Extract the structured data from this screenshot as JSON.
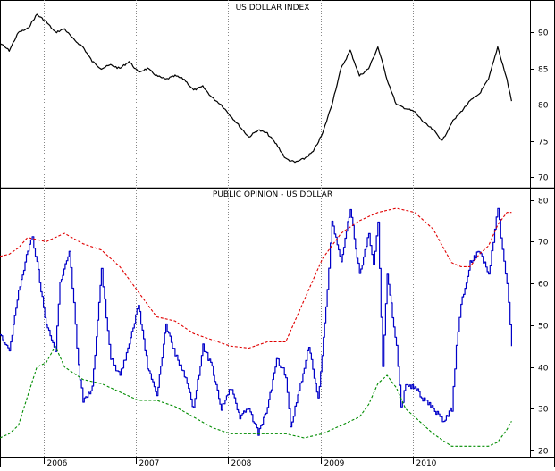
{
  "chart_data": [
    {
      "type": "line",
      "title": "US DOLLAR INDEX",
      "ylim": [
        68.5,
        94.5
      ],
      "y_ticks": [
        70,
        75,
        80,
        85,
        90
      ],
      "x_ticks": [
        "2006",
        "2007",
        "2008",
        "2009",
        "2010"
      ],
      "series": [
        {
          "color": "#000000",
          "style": "solid",
          "x": [
            2005.0,
            2005.1,
            2005.2,
            2005.3,
            2005.4,
            2005.5,
            2005.6,
            2005.7,
            2005.8,
            2005.9,
            2006.0,
            2006.1,
            2006.2,
            2006.3,
            2006.4,
            2006.5,
            2006.6,
            2006.7,
            2006.8,
            2006.9,
            2007.0,
            2007.1,
            2007.2,
            2007.3,
            2007.4,
            2007.5,
            2007.6,
            2007.7,
            2007.8,
            2007.9,
            2008.0,
            2008.1,
            2008.2,
            2008.3,
            2008.4,
            2008.5,
            2008.6,
            2008.7,
            2008.8,
            2008.9,
            2009.0,
            2009.1,
            2009.2,
            2009.3,
            2009.4,
            2009.5,
            2009.6,
            2009.7,
            2009.8,
            2009.9,
            2010.0,
            2010.1,
            2010.2,
            2010.3,
            2010.4,
            2010.5,
            2010.55
          ],
          "values": [
            88.5,
            87.5,
            90.0,
            90.5,
            92.5,
            91.5,
            90.0,
            90.5,
            89.0,
            88.0,
            86.0,
            85.0,
            85.5,
            85.0,
            86.0,
            84.5,
            85.0,
            84.0,
            83.5,
            84.0,
            83.5,
            82.0,
            82.5,
            81.0,
            80.0,
            78.5,
            77.0,
            75.5,
            76.5,
            76.0,
            74.5,
            72.5,
            72.0,
            72.5,
            73.5,
            76.0,
            80.0,
            85.0,
            87.5,
            84.0,
            85.0,
            88.0,
            83.5,
            80.0,
            79.5,
            79.0,
            77.5,
            76.5,
            75.0,
            77.5,
            79.0,
            80.5,
            81.5,
            83.5,
            88.0,
            83.5,
            80.5
          ]
        }
      ]
    },
    {
      "type": "line",
      "title": "PUBLIC OPINION - US DOLLAR",
      "ylim": [
        18.5,
        82.5
      ],
      "y_ticks": [
        20,
        30,
        40,
        50,
        60,
        70,
        80
      ],
      "x_ticks": [
        "2006",
        "2007",
        "2008",
        "2009",
        "2010"
      ],
      "series": [
        {
          "color": "#0000c8",
          "style": "solid",
          "x": [
            2005.0,
            2005.1,
            2005.2,
            2005.3,
            2005.35,
            2005.4,
            2005.5,
            2005.6,
            2005.65,
            2005.75,
            2005.8,
            2005.85,
            2005.9,
            2006.0,
            2006.1,
            2006.15,
            2006.2,
            2006.3,
            2006.4,
            2006.5,
            2006.6,
            2006.7,
            2006.8,
            2006.9,
            2007.0,
            2007.1,
            2007.2,
            2007.3,
            2007.4,
            2007.5,
            2007.6,
            2007.7,
            2007.8,
            2007.9,
            2008.0,
            2008.1,
            2008.15,
            2008.2,
            2008.3,
            2008.35,
            2008.45,
            2008.55,
            2008.6,
            2008.7,
            2008.8,
            2008.9,
            2009.0,
            2009.05,
            2009.1,
            2009.15,
            2009.2,
            2009.3,
            2009.35,
            2009.4,
            2009.5,
            2009.6,
            2009.7,
            2009.8,
            2009.9,
            2009.95,
            2010.0,
            2010.1,
            2010.2,
            2010.3,
            2010.35,
            2010.4,
            2010.45,
            2010.5,
            2010.55
          ],
          "values": [
            48.0,
            44.0,
            58.0,
            68.0,
            71.0,
            65.0,
            50.0,
            44.0,
            60.0,
            68.0,
            55.0,
            40.0,
            32.0,
            35.0,
            63.0,
            52.0,
            42.0,
            38.0,
            45.0,
            55.0,
            40.0,
            33.0,
            50.0,
            43.0,
            38.0,
            30.0,
            45.0,
            40.0,
            30.0,
            35.0,
            28.0,
            30.0,
            24.0,
            30.0,
            42.0,
            38.0,
            25.0,
            30.0,
            40.0,
            45.0,
            32.0,
            58.0,
            75.0,
            65.0,
            78.0,
            62.0,
            72.0,
            65.0,
            75.0,
            40.0,
            62.0,
            45.0,
            30.0,
            36.0,
            35.0,
            32.0,
            30.0,
            27.0,
            30.0,
            45.0,
            55.0,
            65.0,
            68.0,
            62.0,
            70.0,
            78.0,
            68.0,
            60.0,
            45.0
          ]
        },
        {
          "color": "#e00000",
          "style": "dashed",
          "x": [
            2005.0,
            2005.1,
            2005.2,
            2005.3,
            2005.5,
            2005.7,
            2005.9,
            2006.1,
            2006.3,
            2006.5,
            2006.7,
            2006.9,
            2007.1,
            2007.3,
            2007.5,
            2007.7,
            2007.9,
            2008.1,
            2008.3,
            2008.5,
            2008.7,
            2008.9,
            2009.1,
            2009.3,
            2009.5,
            2009.7,
            2009.9,
            2010.0,
            2010.1,
            2010.2,
            2010.3,
            2010.4,
            2010.5,
            2010.55
          ],
          "values": [
            66.5,
            67.0,
            68.5,
            71.0,
            70.0,
            72.0,
            69.5,
            68.0,
            64.0,
            58.0,
            52.0,
            51.0,
            48.0,
            46.5,
            45.0,
            44.5,
            46.0,
            46.0,
            56.0,
            66.0,
            72.0,
            75.0,
            77.0,
            78.0,
            77.0,
            73.0,
            65.0,
            64.0,
            64.0,
            67.0,
            69.0,
            74.0,
            77.0,
            77.0
          ]
        },
        {
          "color": "#008c00",
          "style": "dashed",
          "x": [
            2005.0,
            2005.1,
            2005.2,
            2005.3,
            2005.4,
            2005.5,
            2005.6,
            2005.7,
            2005.9,
            2006.1,
            2006.3,
            2006.5,
            2006.7,
            2006.9,
            2007.1,
            2007.3,
            2007.5,
            2007.7,
            2007.9,
            2008.1,
            2008.3,
            2008.5,
            2008.7,
            2008.9,
            2009.0,
            2009.1,
            2009.2,
            2009.3,
            2009.4,
            2009.5,
            2009.7,
            2009.9,
            2010.0,
            2010.1,
            2010.2,
            2010.3,
            2010.4,
            2010.5,
            2010.55
          ],
          "values": [
            23.0,
            24.0,
            26.0,
            33.0,
            40.0,
            41.0,
            45.0,
            40.0,
            37.0,
            36.0,
            34.0,
            32.0,
            32.0,
            30.5,
            28.0,
            25.5,
            24.0,
            24.0,
            24.0,
            24.0,
            23.0,
            24.0,
            26.0,
            28.0,
            31.0,
            36.0,
            38.0,
            35.0,
            30.0,
            28.0,
            24.0,
            21.0,
            21.0,
            21.0,
            21.0,
            21.0,
            22.0,
            25.0,
            27.0
          ]
        }
      ]
    }
  ]
}
